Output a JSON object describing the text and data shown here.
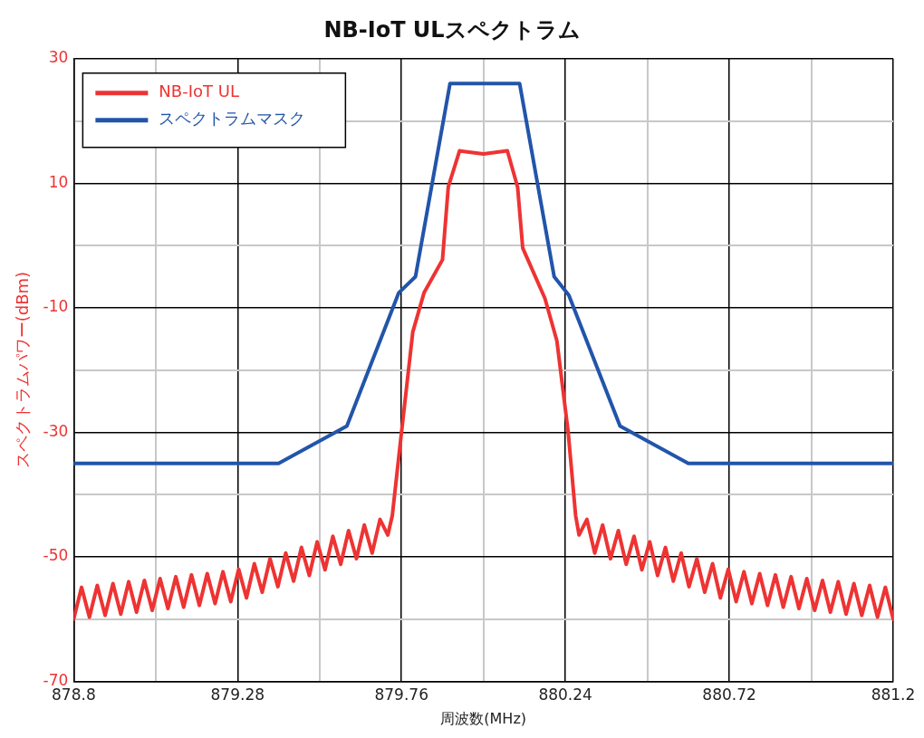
{
  "chart_data": {
    "type": "line",
    "title": "NB-IoT ULスペクトラム",
    "xlabel": "周波数(MHz)",
    "ylabel": "スペクトラムパワー(dBm)",
    "xlim": [
      878.8,
      881.2
    ],
    "xticks": [
      878.8,
      879.28,
      879.76,
      880.24,
      880.72,
      881.2,
      {
        "value": 879.04,
        "label": null
      },
      {
        "value": 879.52,
        "label": null
      },
      {
        "value": 880,
        "label": null
      },
      {
        "value": 880.48,
        "label": null
      },
      {
        "value": 880.96,
        "label": null
      }
    ],
    "ylim": [
      -70,
      30
    ],
    "yticks": [
      -70,
      -50,
      -30,
      -10,
      10,
      30,
      {
        "value": -60,
        "label": null
      },
      {
        "value": -40,
        "label": null
      },
      {
        "value": -20,
        "label": null
      },
      {
        "value": 0,
        "label": null
      },
      {
        "value": 20,
        "label": null
      }
    ],
    "grid": true,
    "legend": "top left",
    "marker": "none",
    "line_style": "solid",
    "series": [
      {
        "name": "NB-IoT UL",
        "color": "#ee3333",
        "x": [
          878.8,
          878.823,
          878.846,
          878.869,
          878.892,
          878.915,
          878.938,
          878.961,
          878.984,
          879.007,
          879.03,
          879.053,
          879.076,
          879.099,
          879.122,
          879.145,
          879.168,
          879.191,
          879.214,
          879.237,
          879.26,
          879.283,
          879.306,
          879.329,
          879.352,
          879.375,
          879.398,
          879.421,
          879.444,
          879.467,
          879.49,
          879.513,
          879.536,
          879.559,
          879.582,
          879.605,
          879.628,
          879.651,
          879.674,
          879.697,
          879.72,
          879.733,
          879.76,
          879.793,
          879.826,
          879.88,
          879.897,
          879.93,
          880,
          880.07,
          880.1,
          880.115,
          880.18,
          880.215,
          880.248,
          880.27,
          880.28,
          880.303,
          880.326,
          880.349,
          880.372,
          880.395,
          880.418,
          880.441,
          880.464,
          880.487,
          880.51,
          880.533,
          880.556,
          880.579,
          880.602,
          880.625,
          880.648,
          880.671,
          880.694,
          880.717,
          880.74,
          880.763,
          880.786,
          880.809,
          880.832,
          880.855,
          880.878,
          880.901,
          880.924,
          880.947,
          880.97,
          880.993,
          881.016,
          881.039,
          881.062,
          881.085,
          881.108,
          881.131,
          881.154,
          881.177,
          881.2
        ],
        "values": [
          -60,
          -54.9,
          -59.7,
          -54.6,
          -59.4,
          -54.3,
          -59.2,
          -54,
          -58.9,
          -53.8,
          -58.6,
          -53.5,
          -58.3,
          -53.2,
          -58.1,
          -52.9,
          -57.8,
          -52.7,
          -57.5,
          -52.4,
          -57.2,
          -52,
          -56.6,
          -51.1,
          -55.7,
          -50.3,
          -54.8,
          -49.4,
          -53.9,
          -48.5,
          -53,
          -47.6,
          -52.1,
          -46.7,
          -51.2,
          -45.8,
          -50.3,
          -44.9,
          -49.4,
          -44,
          -46.5,
          -43.4,
          -30,
          -13.9,
          -7.6,
          -2.3,
          9.4,
          15.2,
          14.7,
          15.2,
          9.4,
          -0.4,
          -8.5,
          -15.3,
          -29.9,
          -43.4,
          -46.5,
          -44,
          -49.4,
          -44.9,
          -50.3,
          -45.8,
          -51.2,
          -46.7,
          -52.1,
          -47.6,
          -53,
          -48.5,
          -53.9,
          -49.4,
          -54.8,
          -50.3,
          -55.7,
          -51.1,
          -56.6,
          -52,
          -57.2,
          -52.4,
          -57.5,
          -52.7,
          -57.8,
          -52.9,
          -58.1,
          -53.2,
          -58.3,
          -53.5,
          -58.6,
          -53.8,
          -58.9,
          -54,
          -59.2,
          -54.3,
          -59.4,
          -54.6,
          -59.7,
          -54.9,
          -60
        ]
      },
      {
        "name": "スペクトラムマスク",
        "color": "#2255aa",
        "x": [
          878.8,
          879.4,
          879.6,
          879.752,
          879.801,
          879.902,
          880.106,
          880.207,
          880.25,
          880.4,
          880.6,
          881.2
        ],
        "values": [
          -35,
          -35,
          -29,
          -7.6,
          -5,
          26,
          26,
          -5,
          -8,
          -29,
          -35,
          -35
        ]
      }
    ]
  }
}
